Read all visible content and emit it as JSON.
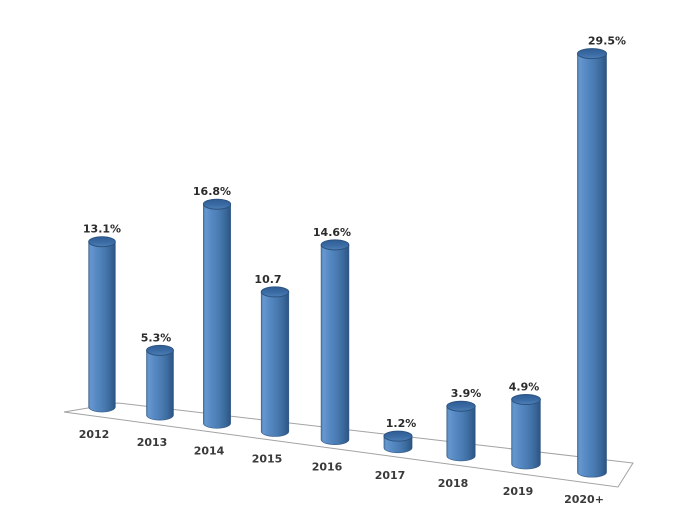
{
  "chart_data": {
    "type": "bar",
    "subtype": "3d-cylinder",
    "title": "",
    "xlabel": "",
    "ylabel": "",
    "legend_visible": false,
    "grid_visible": false,
    "categories": [
      "2012",
      "2013",
      "2014",
      "2015",
      "2016",
      "2017",
      "2018",
      "2019",
      "2020+"
    ],
    "values": [
      13.1,
      5.3,
      16.8,
      10.7,
      14.6,
      1.2,
      3.9,
      4.9,
      29.5
    ],
    "labels": [
      "13.1%",
      "5.3%",
      "16.8%",
      "10.7",
      "14.6%",
      "1.2%",
      "3.9%",
      "4.9%",
      "29.5%"
    ],
    "ylim": [
      0,
      31
    ],
    "colors": {
      "bar_fill": "#4f81bd",
      "bar_highlight": "#6697cf",
      "bar_shadow": "#2c5484",
      "bar_top": "#3d6da6",
      "bar_edge": "#2c5380",
      "floor_edge": "#a3a3a3",
      "value_label": "#2b2b2b",
      "category_label": "#3a3a3a",
      "background": "#ffffff"
    }
  }
}
